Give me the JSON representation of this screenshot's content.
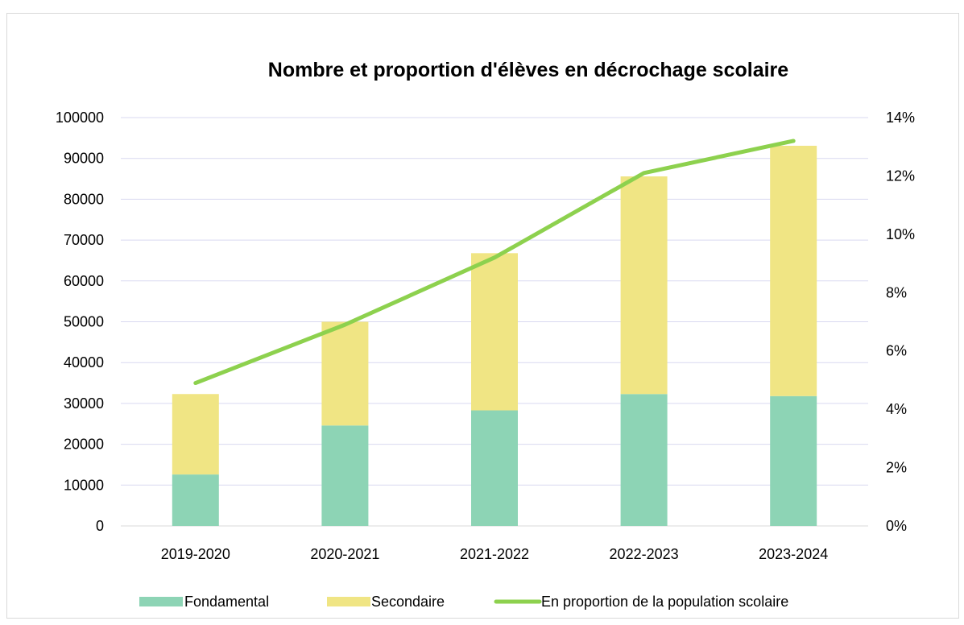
{
  "chart_data": {
    "type": "bar",
    "title": "Nombre et proportion d'élèves en décrochage scolaire",
    "categories": [
      "2019-2020",
      "2020-2021",
      "2021-2022",
      "2022-2023",
      "2023-2024"
    ],
    "stacked": true,
    "series": [
      {
        "name": "Fondamental",
        "type": "bar",
        "axis": "left",
        "color": "#8dd4b5",
        "values": [
          12600,
          24600,
          28300,
          32300,
          31800
        ]
      },
      {
        "name": "Secondaire",
        "type": "bar",
        "axis": "left",
        "color": "#f0e584",
        "values": [
          19700,
          25400,
          38500,
          53300,
          61300
        ]
      },
      {
        "name": "En proportion de la population scolaire",
        "type": "line",
        "axis": "right",
        "color": "#8dd14e",
        "values": [
          0.049,
          0.069,
          0.092,
          0.121,
          0.132
        ]
      }
    ],
    "y_left": {
      "ylim": [
        0,
        100000
      ],
      "ticks": [
        "0",
        "10000",
        "20000",
        "30000",
        "40000",
        "50000",
        "60000",
        "70000",
        "80000",
        "90000",
        "100000"
      ]
    },
    "y_right": {
      "ylim": [
        0,
        0.14
      ],
      "ticks": [
        "0%",
        "2%",
        "4%",
        "6%",
        "8%",
        "10%",
        "12%",
        "14%"
      ]
    },
    "grid": true,
    "legend": "bottom"
  }
}
